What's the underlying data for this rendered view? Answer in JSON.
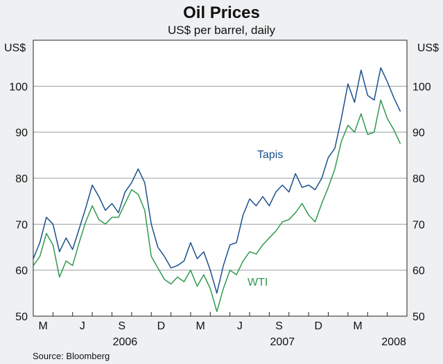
{
  "chart_data": {
    "type": "line",
    "title": "Oil Prices",
    "subtitle": "US$ per barrel, daily",
    "ylabel_left": "US$",
    "ylabel_right": "US$",
    "ylim": [
      50,
      110
    ],
    "yticks": [
      50,
      60,
      70,
      80,
      90,
      100
    ],
    "xlim": [
      0,
      28.5
    ],
    "month_ticks": [
      "M",
      "J",
      "S",
      "D",
      "M",
      "J",
      "S",
      "D",
      "M"
    ],
    "year_labels": [
      {
        "label": "2006",
        "x": 7
      },
      {
        "label": "2007",
        "x": 19
      },
      {
        "label": "2008",
        "x": 27.5
      }
    ],
    "source": "Source: Bloomberg",
    "colors": {
      "tapis": "#1a4f8c",
      "wti": "#2e9a4e",
      "grid": "#9a9ea3",
      "axis": "#222222",
      "plot_bg": "#ffffff",
      "page_bg": "#eef0f2"
    },
    "series": [
      {
        "name": "Tapis",
        "label": "Tapis",
        "x": [
          0,
          0.5,
          1,
          1.5,
          2,
          2.5,
          3,
          3.5,
          4,
          4.5,
          5,
          5.5,
          6,
          6.5,
          7,
          7.5,
          8,
          8.5,
          9,
          9.5,
          10,
          10.5,
          11,
          11.5,
          12,
          12.5,
          13,
          13.5,
          14,
          14.5,
          15,
          15.5,
          16,
          16.5,
          17,
          17.5,
          18,
          18.5,
          19,
          19.5,
          20,
          20.5,
          21,
          21.5,
          22,
          22.5,
          23,
          23.5,
          24,
          24.5,
          25,
          25.5,
          26,
          26.5,
          27,
          27.5,
          28
        ],
        "values": [
          62.5,
          66,
          71.5,
          70,
          64,
          67,
          64.5,
          69,
          73.5,
          78.5,
          76,
          73,
          74.5,
          72.5,
          77,
          79,
          82,
          79,
          70,
          65,
          63,
          60.5,
          61,
          62,
          66,
          62.5,
          64,
          60,
          55,
          61,
          65.5,
          66,
          72,
          75.5,
          74,
          76,
          74,
          77,
          78.5,
          77,
          81,
          78,
          78.5,
          77.5,
          80,
          84.5,
          86.5,
          93,
          100.5,
          96.5,
          103.5,
          98,
          97,
          104,
          101,
          97.5,
          94.5
        ]
      },
      {
        "name": "WTI",
        "label": "WTI",
        "x": [
          0,
          0.5,
          1,
          1.5,
          2,
          2.5,
          3,
          3.5,
          4,
          4.5,
          5,
          5.5,
          6,
          6.5,
          7,
          7.5,
          8,
          8.5,
          9,
          9.5,
          10,
          10.5,
          11,
          11.5,
          12,
          12.5,
          13,
          13.5,
          14,
          14.5,
          15,
          15.5,
          16,
          16.5,
          17,
          17.5,
          18,
          18.5,
          19,
          19.5,
          20,
          20.5,
          21,
          21.5,
          22,
          22.5,
          23,
          23.5,
          24,
          24.5,
          25,
          25.5,
          26,
          26.5,
          27,
          27.5,
          28
        ],
        "values": [
          61,
          63,
          68,
          65.5,
          58.5,
          62,
          61,
          66,
          70.5,
          74,
          71,
          70,
          71.5,
          71.5,
          74.5,
          77.5,
          76.5,
          73,
          63,
          60.5,
          58,
          57,
          58.5,
          57.5,
          60,
          56.5,
          59,
          56,
          51,
          56,
          60,
          59,
          62,
          64,
          63.5,
          65.5,
          67,
          68.5,
          70.5,
          71,
          72.5,
          74.5,
          72,
          70.5,
          74.5,
          78,
          82,
          88,
          91.5,
          90,
          94,
          89.5,
          90,
          97,
          93,
          90.5,
          87.5
        ]
      }
    ]
  }
}
